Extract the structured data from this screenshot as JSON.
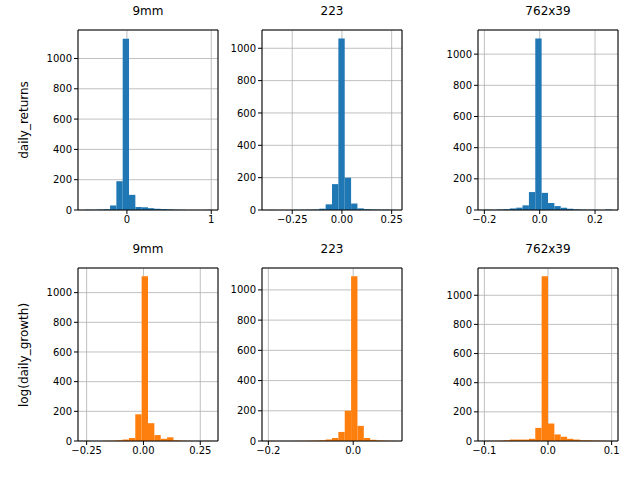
{
  "chart_data": [
    {
      "type": "histogram",
      "title": "9mm",
      "y_label": "daily_returns",
      "color": "#1f77b4",
      "grid": true,
      "bins": [
        -0.5,
        -0.425,
        -0.35,
        -0.275,
        -0.2,
        -0.125,
        -0.05,
        0.025,
        0.1,
        0.175,
        0.25,
        0.325,
        0.4,
        0.475,
        0.55,
        0.625,
        0.7,
        0.775,
        0.85,
        0.925,
        1.0
      ],
      "counts": [
        2,
        1,
        3,
        5,
        30,
        190,
        1130,
        100,
        20,
        18,
        12,
        8,
        6,
        4,
        2,
        1,
        0,
        0,
        0,
        1
      ],
      "xlim": [
        -0.58,
        1.08
      ],
      "xticks": [
        0,
        1
      ],
      "ylim": [
        0,
        1188
      ],
      "yticks": [
        0,
        200,
        400,
        600,
        800,
        1000
      ]
    },
    {
      "type": "histogram",
      "title": "223",
      "color": "#1f77b4",
      "grid": true,
      "bins": [
        -0.37,
        -0.338,
        -0.306,
        -0.274,
        -0.242,
        -0.21,
        -0.178,
        -0.146,
        -0.114,
        -0.082,
        -0.05,
        -0.018,
        0.014,
        0.046,
        0.078,
        0.11,
        0.142,
        0.174,
        0.206,
        0.238,
        0.27
      ],
      "counts": [
        1,
        0,
        0,
        0,
        1,
        1,
        2,
        3,
        8,
        35,
        160,
        1060,
        200,
        40,
        10,
        5,
        3,
        2,
        2,
        1
      ],
      "xlim": [
        -0.402,
        0.302
      ],
      "xticks": [
        {
          "value": -0.25,
          "label": "−0.25"
        },
        {
          "value": 0,
          "label": "0.00"
        },
        0.25
      ],
      "ylim": [
        0,
        1113
      ],
      "yticks": [
        0,
        200,
        400,
        600,
        800,
        1000
      ]
    },
    {
      "type": "histogram",
      "title": "762x39",
      "color": "#1f77b4",
      "grid": true,
      "bins": [
        -0.2,
        -0.177,
        -0.154,
        -0.131,
        -0.108,
        -0.085,
        -0.062,
        -0.039,
        -0.016,
        0.007,
        0.03,
        0.053,
        0.076,
        0.099,
        0.122,
        0.145,
        0.168,
        0.191,
        0.214,
        0.237,
        0.26
      ],
      "counts": [
        2,
        1,
        3,
        5,
        10,
        15,
        30,
        115,
        1100,
        110,
        45,
        25,
        15,
        8,
        4,
        2,
        1,
        1,
        0,
        3
      ],
      "xlim": [
        -0.223,
        0.283
      ],
      "xticks": [
        {
          "value": -0.2,
          "label": "−0.2"
        },
        {
          "value": 0,
          "label": "0.0"
        },
        0.2
      ],
      "ylim": [
        0,
        1155
      ],
      "yticks": [
        0,
        200,
        400,
        600,
        800,
        1000
      ]
    },
    {
      "type": "histogram",
      "title": "9mm",
      "y_label": "log(daily_growth)",
      "color": "#ff7f0e",
      "grid": true,
      "bins": [
        -0.26,
        -0.232,
        -0.204,
        -0.176,
        -0.148,
        -0.12,
        -0.092,
        -0.064,
        -0.036,
        -0.008,
        0.02,
        0.048,
        0.076,
        0.104,
        0.132,
        0.16,
        0.188,
        0.216,
        0.244,
        0.272,
        0.3
      ],
      "counts": [
        1,
        0,
        0,
        1,
        2,
        5,
        10,
        20,
        180,
        1110,
        120,
        40,
        15,
        25,
        5,
        2,
        1,
        0,
        0,
        1
      ],
      "xlim": [
        -0.288,
        0.328
      ],
      "xticks": [
        {
          "value": -0.25,
          "label": "−0.25"
        },
        {
          "value": 0,
          "label": "0.00"
        },
        0.25
      ],
      "ylim": [
        0,
        1166
      ],
      "yticks": [
        0,
        200,
        400,
        600,
        800,
        1000
      ]
    },
    {
      "type": "histogram",
      "title": "223",
      "color": "#ff7f0e",
      "grid": true,
      "bins": [
        -0.2,
        -0.185,
        -0.17,
        -0.155,
        -0.14,
        -0.125,
        -0.11,
        -0.095,
        -0.08,
        -0.065,
        -0.05,
        -0.035,
        -0.02,
        -0.005,
        0.01,
        0.025,
        0.04,
        0.055,
        0.07,
        0.085,
        0.1
      ],
      "counts": [
        1,
        0,
        0,
        0,
        1,
        1,
        2,
        3,
        5,
        10,
        20,
        60,
        200,
        1090,
        100,
        20,
        8,
        4,
        2,
        1
      ],
      "xlim": [
        -0.215,
        0.115
      ],
      "xticks": [
        {
          "value": -0.2,
          "label": "−0.2"
        },
        {
          "value": 0,
          "label": "0.0"
        }
      ],
      "ylim": [
        0,
        1145
      ],
      "yticks": [
        0,
        200,
        400,
        600,
        800,
        1000
      ]
    },
    {
      "type": "histogram",
      "title": "762x39",
      "color": "#ff7f0e",
      "grid": true,
      "bins": [
        -0.1,
        -0.09,
        -0.08,
        -0.07,
        -0.06,
        -0.05,
        -0.04,
        -0.03,
        -0.02,
        -0.01,
        0,
        0.01,
        0.02,
        0.03,
        0.04,
        0.05,
        0.06,
        0.07,
        0.08,
        0.09,
        0.1
      ],
      "counts": [
        1,
        1,
        2,
        5,
        10,
        10,
        10,
        15,
        90,
        1130,
        120,
        45,
        30,
        15,
        10,
        5,
        4,
        3,
        2,
        1
      ],
      "xlim": [
        -0.11,
        0.11
      ],
      "xticks": [
        {
          "value": -0.1,
          "label": "−0.1"
        },
        {
          "value": 0,
          "label": "0.0"
        },
        0.1
      ],
      "ylim": [
        0,
        1187
      ],
      "yticks": [
        0,
        200,
        400,
        600,
        800,
        1000
      ]
    }
  ]
}
